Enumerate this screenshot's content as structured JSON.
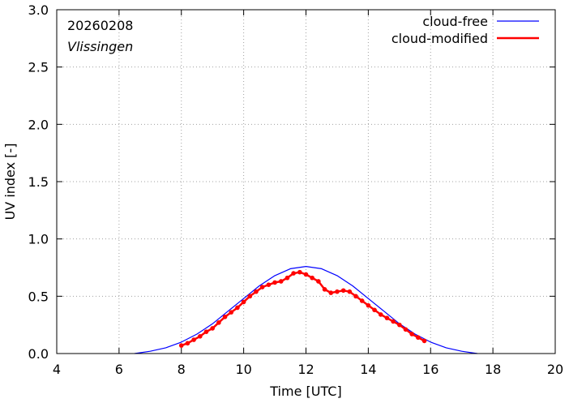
{
  "chart_data": {
    "type": "line",
    "date": "20260208",
    "location": "Vlissingen",
    "xlabel": "Time  [UTC]",
    "ylabel": "UV index  [-]",
    "xlim": [
      4,
      20
    ],
    "ylim": [
      0,
      3
    ],
    "x_ticks": [
      4,
      6,
      8,
      10,
      12,
      14,
      16,
      18,
      20
    ],
    "y_ticks": [
      0.0,
      0.5,
      1.0,
      1.5,
      2.0,
      2.5,
      3.0
    ],
    "x_tick_labels": [
      "4",
      "6",
      "8",
      "10",
      "12",
      "14",
      "16",
      "18",
      "20"
    ],
    "y_tick_labels": [
      "0.0",
      "0.5",
      "1.0",
      "1.5",
      "2.0",
      "2.5",
      "3.0"
    ],
    "legend_position": "top-right",
    "series": [
      {
        "name": "cloud-free",
        "color": "#0000ff",
        "style": "line",
        "x": [
          6.5,
          7.0,
          7.5,
          8.0,
          8.5,
          9.0,
          9.5,
          10.0,
          10.5,
          11.0,
          11.5,
          12.0,
          12.5,
          13.0,
          13.5,
          14.0,
          14.5,
          15.0,
          15.5,
          16.0,
          16.5,
          17.0,
          17.5
        ],
        "values": [
          0.0,
          0.02,
          0.05,
          0.1,
          0.17,
          0.26,
          0.37,
          0.48,
          0.59,
          0.68,
          0.74,
          0.76,
          0.74,
          0.68,
          0.59,
          0.48,
          0.37,
          0.26,
          0.17,
          0.1,
          0.05,
          0.02,
          0.0
        ]
      },
      {
        "name": "cloud-modified",
        "color": "#ff0000",
        "style": "line+points",
        "x": [
          8.0,
          8.2,
          8.4,
          8.6,
          8.8,
          9.0,
          9.2,
          9.4,
          9.6,
          9.8,
          10.0,
          10.2,
          10.4,
          10.6,
          10.8,
          11.0,
          11.2,
          11.4,
          11.6,
          11.8,
          12.0,
          12.2,
          12.4,
          12.6,
          12.8,
          13.0,
          13.2,
          13.4,
          13.6,
          13.8,
          14.0,
          14.2,
          14.4,
          14.6,
          14.8,
          15.0,
          15.2,
          15.4,
          15.6,
          15.8
        ],
        "values": [
          0.07,
          0.09,
          0.12,
          0.15,
          0.19,
          0.22,
          0.27,
          0.32,
          0.36,
          0.4,
          0.45,
          0.5,
          0.54,
          0.58,
          0.6,
          0.62,
          0.63,
          0.66,
          0.7,
          0.71,
          0.69,
          0.66,
          0.63,
          0.56,
          0.53,
          0.54,
          0.55,
          0.54,
          0.5,
          0.46,
          0.42,
          0.38,
          0.34,
          0.31,
          0.28,
          0.25,
          0.21,
          0.17,
          0.14,
          0.11
        ]
      }
    ]
  }
}
